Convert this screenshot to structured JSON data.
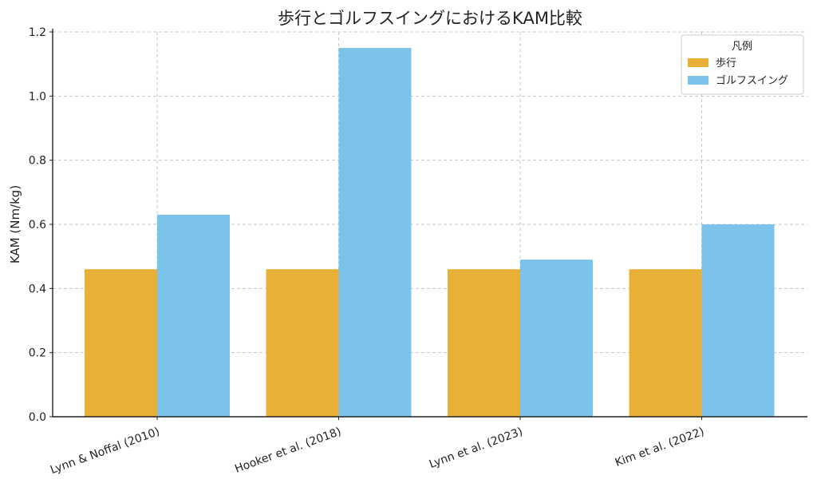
{
  "chart_data": {
    "type": "bar",
    "title": "歩行とゴルフスイングにおけるKAM比較",
    "xlabel": "",
    "ylabel": "KAM (Nm/kg)",
    "categories": [
      "Lynn & Noffal (2010)",
      "Hooker et al. (2018)",
      "Lynn et al. (2023)",
      "Kim et al. (2022)"
    ],
    "series": [
      {
        "name": "歩行",
        "color": "#E8B036",
        "values": [
          0.46,
          0.46,
          0.46,
          0.46
        ]
      },
      {
        "name": "ゴルフスイング",
        "color": "#7BC3EA",
        "values": [
          0.63,
          1.15,
          0.49,
          0.6
        ]
      }
    ],
    "ylim": [
      0,
      1.2
    ],
    "yticks": [
      "0.0",
      "0.2",
      "0.4",
      "0.6",
      "0.8",
      "1.0",
      "1.2"
    ],
    "grid": true,
    "legend": {
      "title": "凡例",
      "placement": "top-right"
    }
  }
}
